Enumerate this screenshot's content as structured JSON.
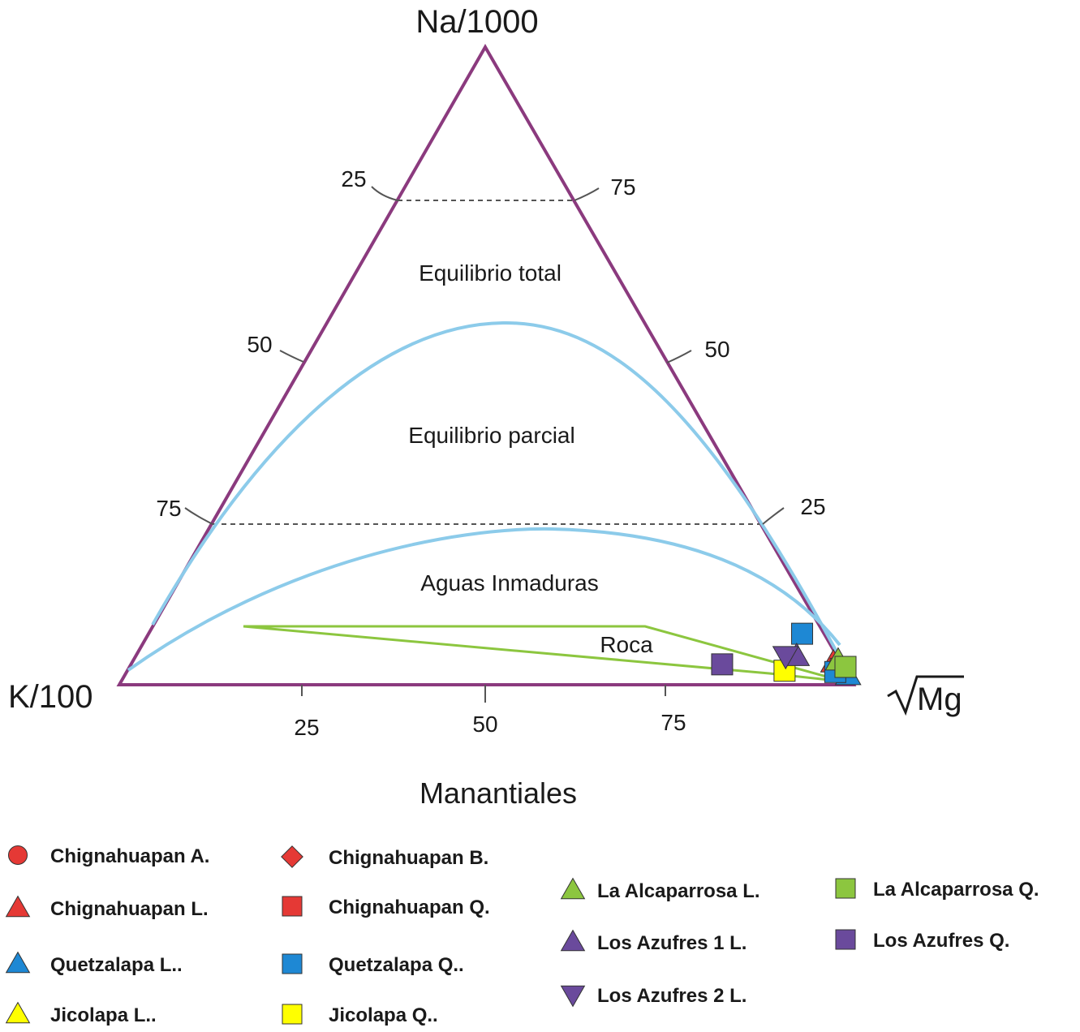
{
  "chart_data": {
    "type": "scatter",
    "subtype": "ternary-giggenbach",
    "apices": {
      "top": "Na/1000",
      "left": "K/100",
      "right": "Mg"
    },
    "left_edge_ticks": [
      "25",
      "50",
      "75"
    ],
    "right_edge_ticks": [
      "75",
      "50",
      "25"
    ],
    "bottom_ticks": [
      "25",
      "50",
      "75"
    ],
    "zones": {
      "full": "Equilibrio total",
      "partial": "Equilibrio parcial",
      "immature": "Aguas Inmaduras",
      "rock": "Roca"
    },
    "colors": {
      "frame": "#8b3a7e",
      "curve": "#8ccbea",
      "rock": "#8cc63f",
      "dashed": "#555555",
      "red": "#e53935",
      "blue": "#1e88d4",
      "yellow": "#ffff00",
      "green": "#8cc63f",
      "purple": "#6a4a9c"
    },
    "legend_title": "Manantiales",
    "series": [
      {
        "name": "Chignahuapan A.",
        "marker": "circle",
        "color": "#e53935",
        "points": []
      },
      {
        "name": "Chignahuapan B.",
        "marker": "diamond",
        "color": "#e53935",
        "points": []
      },
      {
        "name": "Chignahuapan L.",
        "marker": "triangle-up",
        "color": "#e53935",
        "points": [
          [
            0.955,
            0.035
          ]
        ]
      },
      {
        "name": "Chignahuapan Q.",
        "marker": "square",
        "color": "#e53935",
        "points": [
          [
            0.97,
            0.025
          ]
        ]
      },
      {
        "name": "Quetzalapa L..",
        "marker": "triangle-up",
        "color": "#1e88d4",
        "points": [
          [
            0.985,
            0.015
          ]
        ]
      },
      {
        "name": "Quetzalapa Q..",
        "marker": "square",
        "color": "#1e88d4",
        "points": [
          [
            0.89,
            0.08
          ],
          [
            0.965,
            0.02
          ]
        ]
      },
      {
        "name": "Jicolapa  L..",
        "marker": "triangle-up",
        "color": "#ffff00",
        "points": []
      },
      {
        "name": "Jicolapa  Q..",
        "marker": "square",
        "color": "#ffff00",
        "points": [
          [
            0.895,
            0.022
          ]
        ]
      },
      {
        "name": "La Alcaparrosa  L.",
        "marker": "triangle-up",
        "color": "#8cc63f",
        "points": [
          [
            0.96,
            0.038
          ]
        ]
      },
      {
        "name": "La Alcaparrosa  Q.",
        "marker": "square",
        "color": "#8cc63f",
        "points": [
          [
            0.975,
            0.028
          ]
        ]
      },
      {
        "name": "Los Azufres 1  L.",
        "marker": "triangle-up",
        "color": "#6a4a9c",
        "points": [
          [
            0.9,
            0.045
          ]
        ]
      },
      {
        "name": "Los Azufres 2  L.",
        "marker": "triangle-down",
        "color": "#6a4a9c",
        "points": [
          [
            0.885,
            0.045
          ]
        ]
      },
      {
        "name": "Los Azufres Q.",
        "marker": "square",
        "color": "#6a4a9c",
        "points": [
          [
            0.805,
            0.032
          ]
        ]
      }
    ]
  }
}
